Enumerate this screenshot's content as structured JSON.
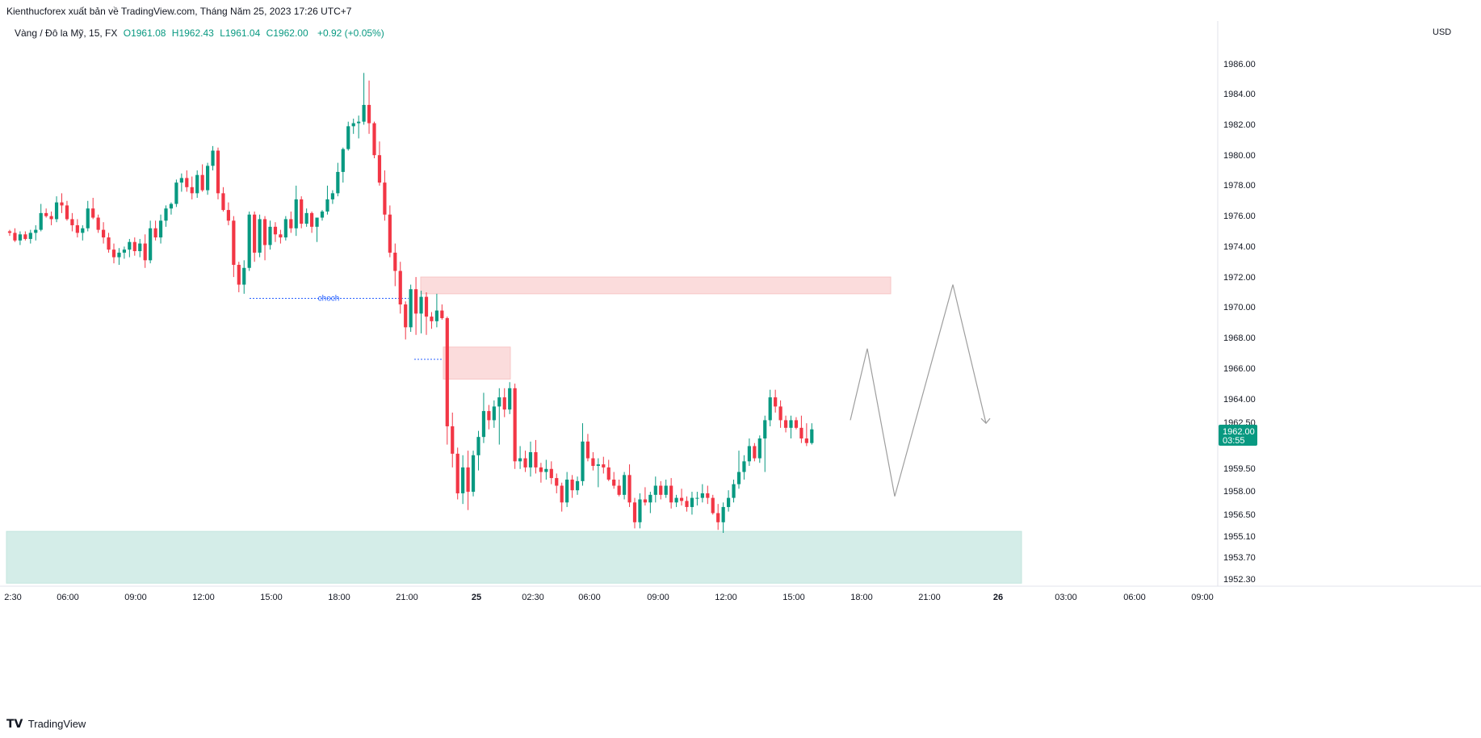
{
  "header": {
    "publisher": "Kienthucforex xuất bản về TradingView.com, Tháng Năm 25, 2023 17:26 UTC+7"
  },
  "legend": {
    "symbol": "Vàng / Đô la Mỹ, 15, FX",
    "open": "O1961.08",
    "high": "H1962.43",
    "low": "L1961.04",
    "close": "C1962.00",
    "change": "+0.92 (+0.05%)"
  },
  "currency": "USD",
  "last_price": {
    "price": "1962.00",
    "countdown": "03:55",
    "label_above": "1962.50"
  },
  "annotation_choch": "choch",
  "footer": {
    "brand": "TradingView",
    "logo": "tradingview-logo-icon"
  },
  "colors": {
    "up": "#089981",
    "down": "#f23645",
    "bearish_zone": "#fbdcdc",
    "bullish_zone": "#d4ede8",
    "projection": "#9e9e9e",
    "choch_line": "#2962ff",
    "price_tag": "#089981"
  },
  "chart_data": {
    "type": "candlestick",
    "symbol": "Vàng / Đô la Mỹ",
    "timeframe": "15",
    "y_ticks": [
      "1986.00",
      "1984.00",
      "1982.00",
      "1980.00",
      "1978.00",
      "1976.00",
      "1974.00",
      "1972.00",
      "1970.00",
      "1968.00",
      "1966.00",
      "1964.00",
      "1959.50",
      "1958.00",
      "1956.50",
      "1955.10",
      "1953.70",
      "1952.30"
    ],
    "x_ticks": [
      "2:30",
      "06:00",
      "09:00",
      "12:00",
      "15:00",
      "18:00",
      "21:00",
      "25",
      "02:30",
      "06:00",
      "09:00",
      "12:00",
      "15:00",
      "18:00",
      "21:00",
      "26",
      "03:00",
      "06:00",
      "09:00"
    ],
    "approx_range": {
      "low": 1955.0,
      "high": 1985.4
    },
    "candles_ohlc": [
      [
        1975.0,
        1975.1,
        1974.7,
        1974.9
      ],
      [
        1974.9,
        1975.2,
        1974.3,
        1974.4
      ],
      [
        1974.4,
        1975.0,
        1974.1,
        1974.8
      ],
      [
        1974.8,
        1975.0,
        1974.4,
        1974.5
      ],
      [
        1974.5,
        1975.1,
        1974.2,
        1974.9
      ],
      [
        1974.9,
        1975.4,
        1974.4,
        1975.1
      ],
      [
        1975.1,
        1976.8,
        1975.0,
        1976.2
      ],
      [
        1976.2,
        1976.5,
        1975.9,
        1976.0
      ],
      [
        1976.0,
        1976.3,
        1975.4,
        1975.8
      ],
      [
        1975.8,
        1977.3,
        1975.6,
        1976.9
      ],
      [
        1976.9,
        1977.5,
        1976.2,
        1976.7
      ],
      [
        1976.7,
        1977.0,
        1975.7,
        1975.8
      ],
      [
        1975.8,
        1976.2,
        1975.0,
        1975.4
      ],
      [
        1975.4,
        1975.8,
        1974.6,
        1974.9
      ],
      [
        1974.9,
        1975.4,
        1974.4,
        1975.2
      ],
      [
        1975.2,
        1977.0,
        1975.0,
        1976.5
      ],
      [
        1976.5,
        1977.2,
        1975.8,
        1975.9
      ],
      [
        1975.9,
        1976.1,
        1974.9,
        1975.1
      ],
      [
        1975.1,
        1975.6,
        1974.2,
        1974.6
      ],
      [
        1974.6,
        1974.9,
        1973.6,
        1973.8
      ],
      [
        1973.8,
        1974.2,
        1972.9,
        1973.3
      ],
      [
        1973.3,
        1973.9,
        1972.8,
        1973.6
      ],
      [
        1973.6,
        1974.0,
        1973.2,
        1973.8
      ],
      [
        1973.8,
        1974.5,
        1973.3,
        1974.3
      ],
      [
        1974.3,
        1974.6,
        1973.4,
        1973.7
      ],
      [
        1973.7,
        1974.5,
        1973.3,
        1974.2
      ],
      [
        1974.2,
        1974.8,
        1972.6,
        1973.1
      ],
      [
        1973.1,
        1975.7,
        1972.9,
        1975.2
      ],
      [
        1975.2,
        1975.7,
        1974.4,
        1974.6
      ],
      [
        1974.6,
        1976.1,
        1974.2,
        1975.7
      ],
      [
        1975.7,
        1976.7,
        1975.3,
        1976.5
      ],
      [
        1976.5,
        1976.9,
        1976.1,
        1976.8
      ],
      [
        1976.8,
        1978.4,
        1976.6,
        1978.2
      ],
      [
        1978.2,
        1978.8,
        1977.6,
        1978.5
      ],
      [
        1978.5,
        1979.0,
        1977.6,
        1977.9
      ],
      [
        1977.9,
        1978.6,
        1977.1,
        1977.5
      ],
      [
        1977.5,
        1979.0,
        1977.2,
        1978.7
      ],
      [
        1978.7,
        1979.4,
        1977.6,
        1977.7
      ],
      [
        1977.7,
        1979.5,
        1977.4,
        1979.3
      ],
      [
        1979.3,
        1980.6,
        1979.0,
        1980.3
      ],
      [
        1980.3,
        1980.5,
        1977.1,
        1977.5
      ],
      [
        1977.5,
        1977.9,
        1976.3,
        1976.4
      ],
      [
        1976.4,
        1976.9,
        1975.4,
        1975.7
      ],
      [
        1975.7,
        1976.0,
        1972.0,
        1972.8
      ],
      [
        1972.8,
        1973.0,
        1971.0,
        1971.5
      ],
      [
        1971.5,
        1973.1,
        1970.9,
        1972.6
      ],
      [
        1972.6,
        1976.3,
        1972.4,
        1976.1
      ],
      [
        1976.1,
        1976.3,
        1973.0,
        1973.6
      ],
      [
        1973.6,
        1976.1,
        1973.3,
        1975.8
      ],
      [
        1975.8,
        1976.0,
        1973.1,
        1974.1
      ],
      [
        1974.1,
        1975.7,
        1973.8,
        1975.3
      ],
      [
        1975.3,
        1975.6,
        1974.3,
        1974.8
      ],
      [
        1974.8,
        1975.1,
        1974.2,
        1974.6
      ],
      [
        1974.6,
        1976.0,
        1974.4,
        1975.8
      ],
      [
        1975.8,
        1976.3,
        1974.9,
        1975.2
      ],
      [
        1975.2,
        1978.0,
        1974.7,
        1977.1
      ],
      [
        1977.1,
        1977.3,
        1975.2,
        1975.5
      ],
      [
        1975.5,
        1976.5,
        1975.3,
        1976.2
      ],
      [
        1976.2,
        1976.3,
        1974.9,
        1975.3
      ],
      [
        1975.3,
        1975.9,
        1974.3,
        1975.9
      ],
      [
        1975.9,
        1976.4,
        1975.7,
        1976.3
      ],
      [
        1976.3,
        1978.0,
        1976.1,
        1977.1
      ],
      [
        1977.1,
        1977.7,
        1976.8,
        1977.5
      ],
      [
        1977.5,
        1979.5,
        1977.3,
        1978.9
      ],
      [
        1978.9,
        1980.5,
        1978.2,
        1980.4
      ],
      [
        1980.4,
        1982.2,
        1980.3,
        1981.9
      ],
      [
        1981.9,
        1982.4,
        1981.4,
        1982.1
      ],
      [
        1982.1,
        1982.6,
        1981.1,
        1982.2
      ],
      [
        1982.2,
        1985.4,
        1982.0,
        1983.3
      ],
      [
        1983.3,
        1984.9,
        1981.4,
        1982.1
      ],
      [
        1982.1,
        1982.2,
        1979.8,
        1980.0
      ],
      [
        1980.0,
        1980.9,
        1978.0,
        1978.2
      ],
      [
        1978.2,
        1979.0,
        1975.7,
        1976.1
      ],
      [
        1976.1,
        1976.7,
        1973.3,
        1973.6
      ],
      [
        1973.6,
        1974.2,
        1971.4,
        1972.4
      ],
      [
        1972.4,
        1973.0,
        1969.6,
        1970.2
      ],
      [
        1970.2,
        1970.4,
        1967.9,
        1968.7
      ],
      [
        1968.7,
        1971.5,
        1968.4,
        1971.2
      ],
      [
        1971.2,
        1972.0,
        1968.2,
        1969.6
      ],
      [
        1969.6,
        1971.1,
        1968.3,
        1970.7
      ],
      [
        1970.7,
        1971.0,
        1968.2,
        1969.4
      ],
      [
        1969.4,
        1969.7,
        1968.6,
        1969.1
      ],
      [
        1969.1,
        1970.9,
        1968.7,
        1969.8
      ],
      [
        1969.8,
        1970.2,
        1969.2,
        1969.3
      ],
      [
        1969.3,
        1969.4,
        1961.0,
        1962.2
      ],
      [
        1962.2,
        1963.1,
        1959.5,
        1960.4
      ],
      [
        1960.4,
        1960.8,
        1957.4,
        1957.8
      ],
      [
        1957.8,
        1960.3,
        1957.1,
        1959.5
      ],
      [
        1959.5,
        1960.6,
        1956.7,
        1957.9
      ],
      [
        1957.9,
        1960.6,
        1957.6,
        1960.3
      ],
      [
        1960.3,
        1961.9,
        1959.3,
        1961.5
      ],
      [
        1961.5,
        1964.4,
        1961.1,
        1963.2
      ],
      [
        1963.2,
        1963.6,
        1962.0,
        1962.6
      ],
      [
        1962.6,
        1963.9,
        1962.1,
        1963.5
      ],
      [
        1963.5,
        1964.7,
        1961.0,
        1964.1
      ],
      [
        1964.1,
        1964.7,
        1962.8,
        1963.3
      ],
      [
        1963.3,
        1965.1,
        1963.0,
        1964.7
      ],
      [
        1964.7,
        1965.0,
        1959.4,
        1959.9
      ],
      [
        1959.9,
        1960.9,
        1959.4,
        1960.1
      ],
      [
        1960.1,
        1960.6,
        1959.2,
        1959.5
      ],
      [
        1959.5,
        1961.2,
        1958.9,
        1960.5
      ],
      [
        1960.5,
        1961.3,
        1959.1,
        1959.5
      ],
      [
        1959.5,
        1959.8,
        1958.5,
        1959.2
      ],
      [
        1959.2,
        1960.0,
        1958.7,
        1959.4
      ],
      [
        1959.4,
        1959.9,
        1958.4,
        1958.8
      ],
      [
        1958.8,
        1959.1,
        1957.8,
        1958.3
      ],
      [
        1958.3,
        1958.5,
        1956.6,
        1957.2
      ],
      [
        1957.2,
        1959.2,
        1956.9,
        1958.7
      ],
      [
        1958.7,
        1959.0,
        1957.5,
        1958.0
      ],
      [
        1958.0,
        1958.9,
        1957.7,
        1958.6
      ],
      [
        1958.6,
        1962.4,
        1958.3,
        1961.2
      ],
      [
        1961.2,
        1961.7,
        1959.9,
        1960.1
      ],
      [
        1960.1,
        1960.5,
        1959.3,
        1959.6
      ],
      [
        1959.6,
        1960.1,
        1958.2,
        1959.7
      ],
      [
        1959.7,
        1960.2,
        1959.1,
        1959.5
      ],
      [
        1959.5,
        1960.0,
        1958.6,
        1958.7
      ],
      [
        1958.7,
        1959.2,
        1958.1,
        1958.3
      ],
      [
        1958.3,
        1958.7,
        1957.6,
        1957.7
      ],
      [
        1957.7,
        1959.2,
        1957.4,
        1959.0
      ],
      [
        1959.0,
        1959.7,
        1956.9,
        1957.2
      ],
      [
        1957.2,
        1957.5,
        1955.5,
        1955.9
      ],
      [
        1955.9,
        1957.8,
        1955.5,
        1957.4
      ],
      [
        1957.4,
        1958.2,
        1957.0,
        1957.2
      ],
      [
        1957.2,
        1957.9,
        1956.5,
        1957.7
      ],
      [
        1957.7,
        1958.9,
        1957.2,
        1958.3
      ],
      [
        1958.3,
        1958.6,
        1957.4,
        1957.7
      ],
      [
        1957.7,
        1958.7,
        1957.5,
        1958.3
      ],
      [
        1958.3,
        1958.8,
        1956.8,
        1957.2
      ],
      [
        1957.2,
        1957.7,
        1956.9,
        1957.5
      ],
      [
        1957.5,
        1958.1,
        1957.0,
        1957.3
      ],
      [
        1957.3,
        1957.6,
        1956.6,
        1956.9
      ],
      [
        1956.9,
        1957.9,
        1956.4,
        1957.5
      ],
      [
        1957.5,
        1957.9,
        1957.0,
        1957.5
      ],
      [
        1957.5,
        1958.4,
        1957.2,
        1957.8
      ],
      [
        1957.8,
        1958.3,
        1957.1,
        1957.5
      ],
      [
        1957.5,
        1957.7,
        1956.4,
        1956.5
      ],
      [
        1956.5,
        1957.1,
        1955.4,
        1955.9
      ],
      [
        1955.9,
        1957.2,
        1955.2,
        1956.9
      ],
      [
        1956.9,
        1958.0,
        1956.6,
        1957.5
      ],
      [
        1957.5,
        1958.7,
        1957.2,
        1958.4
      ],
      [
        1958.4,
        1960.6,
        1958.1,
        1959.2
      ],
      [
        1959.2,
        1960.3,
        1958.7,
        1959.9
      ],
      [
        1959.9,
        1961.4,
        1959.6,
        1960.9
      ],
      [
        1960.9,
        1961.1,
        1959.9,
        1960.1
      ],
      [
        1960.1,
        1961.6,
        1959.8,
        1961.4
      ],
      [
        1961.4,
        1962.9,
        1959.2,
        1962.6
      ],
      [
        1962.6,
        1964.6,
        1962.2,
        1964.1
      ],
      [
        1964.1,
        1964.6,
        1963.1,
        1963.5
      ],
      [
        1963.5,
        1963.9,
        1962.1,
        1962.6
      ],
      [
        1962.6,
        1962.9,
        1961.8,
        1962.1
      ],
      [
        1962.1,
        1962.9,
        1961.4,
        1962.6
      ],
      [
        1962.6,
        1962.8,
        1962.0,
        1962.1
      ],
      [
        1962.1,
        1962.9,
        1961.1,
        1961.4
      ],
      [
        1961.4,
        1962.4,
        1960.9,
        1961.1
      ],
      [
        1961.1,
        1962.4,
        1961.0,
        1962.0
      ]
    ],
    "zones": [
      {
        "kind": "bearish-supply",
        "from": 1970.9,
        "to": 1972.0
      },
      {
        "kind": "bearish-supply",
        "from": 1965.3,
        "to": 1967.4
      },
      {
        "kind": "bullish-demand",
        "from": 1951.9,
        "to": 1955.3
      }
    ],
    "choch_level": 1970.6,
    "projection_path": [
      1962.6,
      1967.3,
      1957.6,
      1971.5,
      1962.4
    ]
  }
}
